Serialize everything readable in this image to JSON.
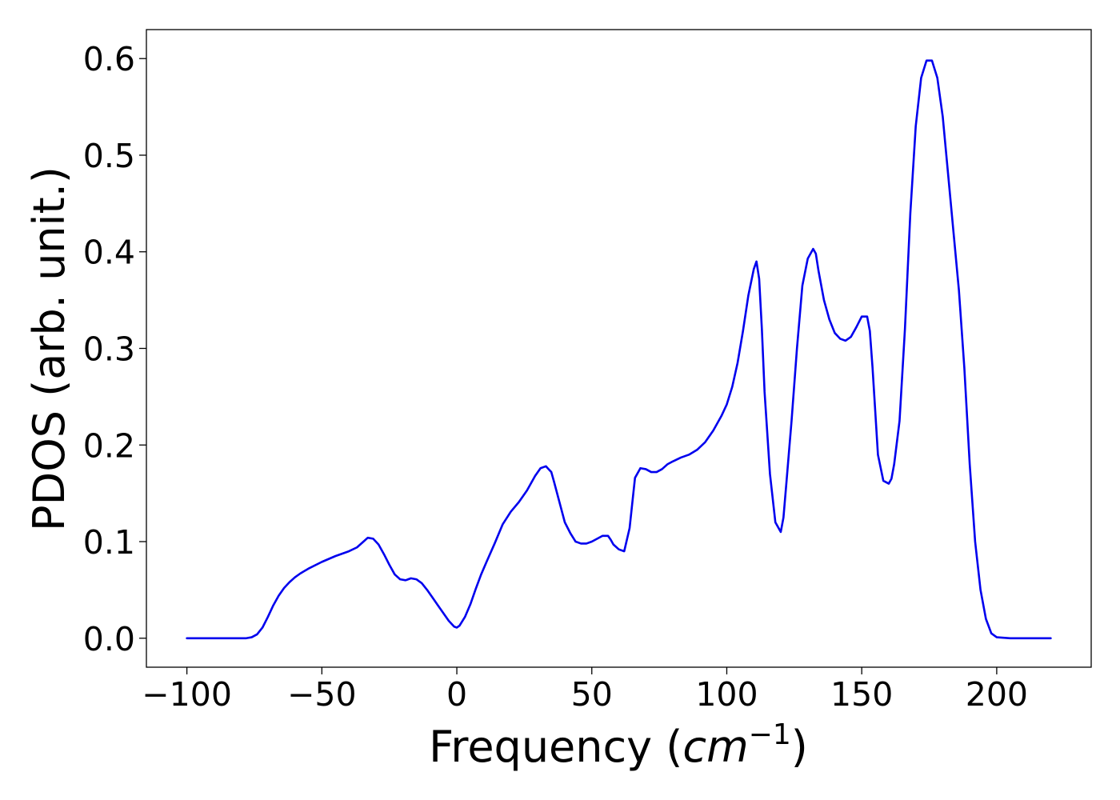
{
  "chart_data": {
    "type": "line",
    "title": "",
    "xlabel": "Frequency (",
    "xlabel_unit": "cm",
    "xlabel_exponent": "−1",
    "xlabel_close": ")",
    "ylabel": "PDOS (arb. unit.)",
    "xlim": [
      -115,
      235
    ],
    "ylim": [
      -0.03,
      0.63
    ],
    "xticks": [
      -100,
      -50,
      0,
      50,
      100,
      150,
      200
    ],
    "xtick_labels": [
      "−100",
      "−50",
      "0",
      "50",
      "100",
      "150",
      "200"
    ],
    "yticks": [
      0.0,
      0.1,
      0.2,
      0.3,
      0.4,
      0.5,
      0.6
    ],
    "ytick_labels": [
      "0.0",
      "0.1",
      "0.2",
      "0.3",
      "0.4",
      "0.5",
      "0.6"
    ],
    "grid": false,
    "legend": "none",
    "series": [
      {
        "color": "#0000ee",
        "x": [
          -100,
          -90,
          -80,
          -78,
          -76,
          -74,
          -72,
          -70,
          -68,
          -66,
          -64,
          -62,
          -60,
          -58,
          -55,
          -50,
          -45,
          -40,
          -37,
          -35,
          -33,
          -31,
          -29,
          -27,
          -25,
          -23,
          -21,
          -19,
          -17,
          -15,
          -13,
          -11,
          -9,
          -7,
          -5,
          -3,
          -1,
          0,
          1,
          3,
          5,
          7,
          9,
          11,
          14,
          17,
          20,
          23,
          26,
          29,
          31,
          33,
          34,
          35,
          36,
          38,
          40,
          42,
          44,
          46,
          48,
          50,
          52,
          54,
          56,
          57,
          58,
          60,
          62,
          64,
          66,
          68,
          70,
          72,
          74,
          76,
          78,
          80,
          83,
          86,
          89,
          92,
          95,
          98,
          100,
          102,
          104,
          106,
          108,
          110,
          111,
          112,
          113,
          114,
          116,
          118,
          120,
          121,
          122,
          124,
          126,
          128,
          130,
          132,
          133,
          134,
          136,
          138,
          140,
          142,
          144,
          146,
          148,
          150,
          152,
          153,
          154,
          156,
          158,
          160,
          161,
          162,
          164,
          166,
          168,
          170,
          172,
          174,
          175,
          176,
          178,
          180,
          182,
          184,
          186,
          188,
          190,
          192,
          194,
          196,
          198,
          200,
          205,
          210,
          220
        ],
        "y": [
          0.0,
          0.0,
          0.0,
          0.0,
          0.001,
          0.004,
          0.011,
          0.022,
          0.034,
          0.044,
          0.052,
          0.058,
          0.063,
          0.067,
          0.072,
          0.079,
          0.085,
          0.09,
          0.094,
          0.099,
          0.104,
          0.103,
          0.097,
          0.087,
          0.076,
          0.066,
          0.061,
          0.06,
          0.062,
          0.061,
          0.057,
          0.05,
          0.042,
          0.034,
          0.026,
          0.018,
          0.012,
          0.011,
          0.013,
          0.022,
          0.035,
          0.051,
          0.066,
          0.079,
          0.098,
          0.118,
          0.131,
          0.141,
          0.153,
          0.168,
          0.176,
          0.178,
          0.175,
          0.172,
          0.162,
          0.141,
          0.12,
          0.109,
          0.1,
          0.098,
          0.098,
          0.1,
          0.103,
          0.106,
          0.106,
          0.102,
          0.097,
          0.092,
          0.09,
          0.114,
          0.166,
          0.176,
          0.175,
          0.172,
          0.172,
          0.175,
          0.18,
          0.183,
          0.187,
          0.19,
          0.195,
          0.203,
          0.215,
          0.23,
          0.242,
          0.26,
          0.285,
          0.318,
          0.355,
          0.382,
          0.39,
          0.372,
          0.32,
          0.255,
          0.17,
          0.12,
          0.11,
          0.125,
          0.158,
          0.225,
          0.3,
          0.365,
          0.393,
          0.403,
          0.398,
          0.38,
          0.35,
          0.33,
          0.316,
          0.31,
          0.308,
          0.312,
          0.322,
          0.333,
          0.333,
          0.318,
          0.28,
          0.19,
          0.163,
          0.16,
          0.165,
          0.18,
          0.225,
          0.32,
          0.44,
          0.53,
          0.58,
          0.598,
          0.598,
          0.598,
          0.58,
          0.54,
          0.48,
          0.42,
          0.36,
          0.28,
          0.18,
          0.1,
          0.05,
          0.02,
          0.005,
          0.001,
          0.0,
          0.0,
          0.0
        ]
      }
    ]
  }
}
